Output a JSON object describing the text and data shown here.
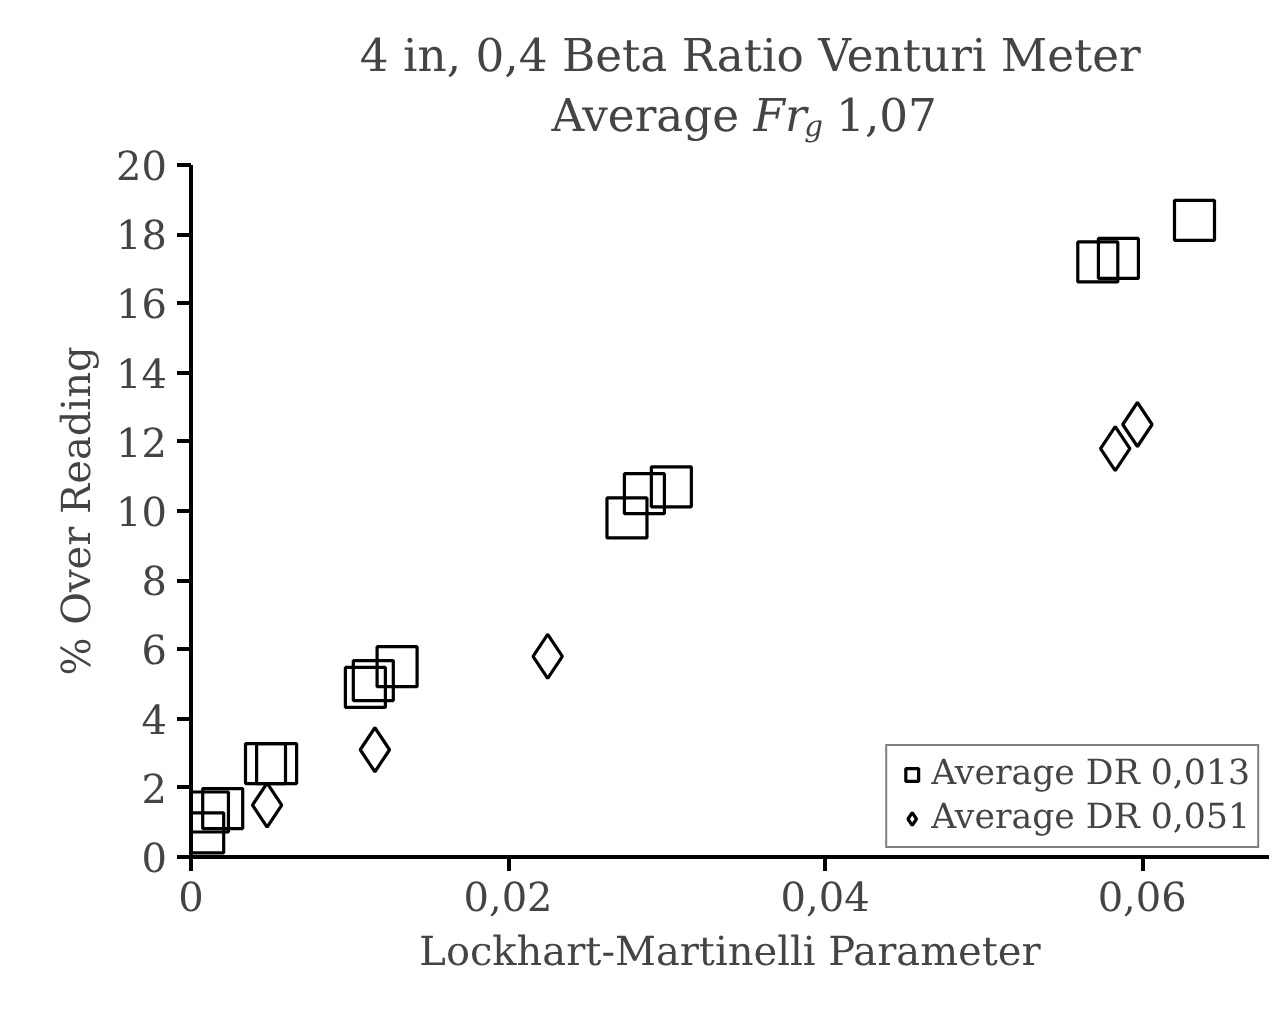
{
  "chart_data": {
    "type": "scatter",
    "title": "4 in, 0,4 Beta Ratio Venturi Meter",
    "subtitle": "Average Fr$_{g}$ 1,07",
    "xlabel": "Lockhart-Martinelli Parameter",
    "ylabel": "% Over Reading",
    "xlim": [
      0,
      0.068
    ],
    "ylim": [
      0,
      20
    ],
    "xticks": [
      0,
      {
        "value": 0.02,
        "label": "0,02"
      },
      {
        "value": 0.04,
        "label": "0,04"
      },
      {
        "value": 0.06,
        "label": "0,06"
      }
    ],
    "yticks": [
      0,
      2,
      4,
      6,
      8,
      10,
      12,
      14,
      16,
      18,
      20
    ],
    "grid": false,
    "legend": "bottom right",
    "series": [
      {
        "name": "Average DR 0,013",
        "color": "#000000",
        "marker": "square",
        "x": [
          0.0008,
          0.0011,
          0.002,
          0.0047,
          0.0054,
          0.011,
          0.0115,
          0.013,
          0.0275,
          0.0286,
          0.0303,
          0.0572,
          0.0585,
          0.0633
        ],
        "values": [
          0.7,
          1.3,
          1.4,
          2.7,
          2.7,
          4.9,
          5.1,
          5.5,
          9.8,
          10.5,
          10.7,
          17.2,
          17.3,
          18.4
        ]
      },
      {
        "name": "Average DR 0,051",
        "color": "#000000",
        "marker": "diamond",
        "x": [
          0.0048,
          0.0116,
          0.0225,
          0.0583,
          0.0597
        ],
        "values": [
          1.5,
          3.1,
          5.8,
          11.8,
          12.5
        ]
      }
    ]
  }
}
